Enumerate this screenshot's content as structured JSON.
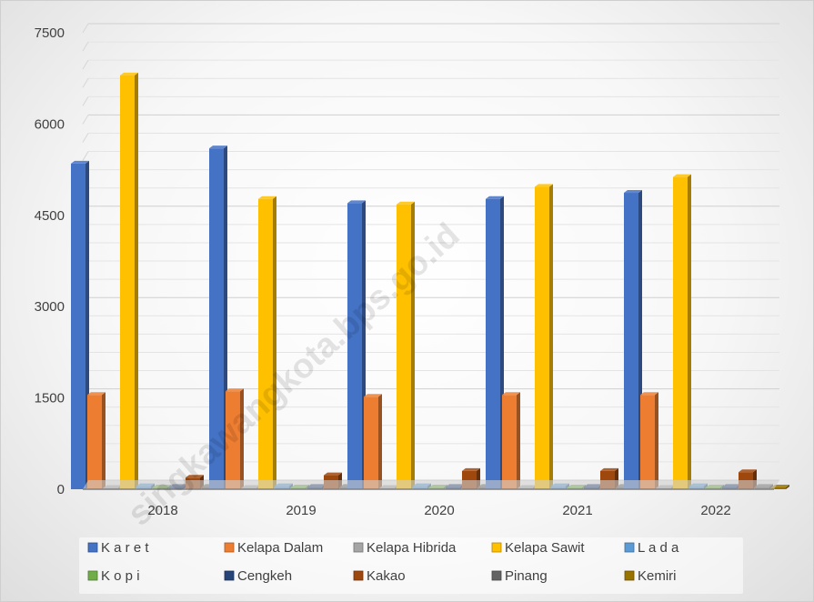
{
  "chart_data": {
    "type": "bar",
    "title": "",
    "xlabel": "",
    "ylabel": "",
    "categories": [
      "2018",
      "2019",
      "2020",
      "2021",
      "2022"
    ],
    "ylim": [
      0,
      7500
    ],
    "yticks": [
      0,
      1500,
      3000,
      4500,
      6000,
      7500
    ],
    "grid": true,
    "legend_position": "bottom",
    "series": [
      {
        "name": "K a r e t",
        "color": "#4472C4",
        "values": [
          5350,
          5600,
          4700,
          4770,
          4870
        ]
      },
      {
        "name": "Kelapa Dalam",
        "color": "#ED7D31",
        "values": [
          1550,
          1610,
          1520,
          1550,
          1550
        ]
      },
      {
        "name": "Kelapa Hibrida",
        "color": "#A5A5A5",
        "values": [
          10,
          10,
          10,
          10,
          10
        ]
      },
      {
        "name": "Kelapa Sawit",
        "color": "#FFC000",
        "values": [
          6800,
          4770,
          4680,
          4970,
          5130
        ]
      },
      {
        "name": "L a d a",
        "color": "#5B9BD5",
        "values": [
          50,
          50,
          50,
          50,
          50
        ]
      },
      {
        "name": "K o p i",
        "color": "#70AD47",
        "values": [
          30,
          30,
          30,
          30,
          30
        ]
      },
      {
        "name": "Cengkeh",
        "color": "#264478",
        "values": [
          40,
          40,
          40,
          40,
          40
        ]
      },
      {
        "name": "Kakao",
        "color": "#9E480E",
        "values": [
          190,
          230,
          300,
          300,
          280
        ]
      },
      {
        "name": "Pinang",
        "color": "#636363",
        "values": [
          40,
          40,
          40,
          40,
          40
        ]
      },
      {
        "name": "Kemiri",
        "color": "#997300",
        "values": [
          30,
          30,
          30,
          30,
          30
        ]
      }
    ]
  },
  "watermark": "singkawangkota.bps.go.id"
}
